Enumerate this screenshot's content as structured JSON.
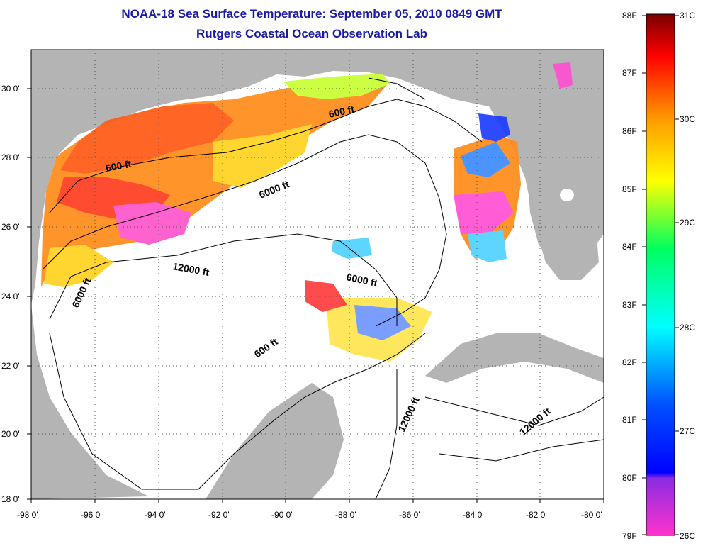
{
  "title_line1": "NOAA-18 Sea Surface Temperature:  September 05, 2010 0849 GMT",
  "title_line2": "Rutgers Coastal Ocean Observation Lab",
  "map": {
    "lon_range": [
      -98,
      -80
    ],
    "lat_range": [
      18,
      31
    ],
    "lon_ticks": [
      "-98 0'",
      "-96 0'",
      "-94 0'",
      "-92 0'",
      "-90 0'",
      "-88 0'",
      "-86 0'",
      "-84 0'",
      "-82 0'",
      "-80 0'"
    ],
    "lat_ticks": [
      "30 0'",
      "28 0'",
      "26 0'",
      "24 0'",
      "22 0'",
      "20 0'",
      "18 0'"
    ],
    "grid": "dotted",
    "land_color": "#b4b4b4",
    "ocean_color": "#ffffff",
    "contour_labels": [
      "600 ft",
      "600 ft",
      "6000 ft",
      "12000 ft",
      "6000 ft",
      "6000 ft",
      "600 ft",
      "12000 ft",
      "12000 ft"
    ]
  },
  "colorbar": {
    "fahrenheit_labels": [
      "88F",
      "87F",
      "86F",
      "85F",
      "84F",
      "83F",
      "82F",
      "81F",
      "80F",
      "79F"
    ],
    "celsius_labels": [
      "31C",
      "30C",
      "29C",
      "28C",
      "27C",
      "26C"
    ],
    "colors": [
      "#7a0000",
      "#ff0000",
      "#ff8c00",
      "#ffff00",
      "#00ff00",
      "#00ffff",
      "#0000ff",
      "#ff33cc"
    ]
  }
}
